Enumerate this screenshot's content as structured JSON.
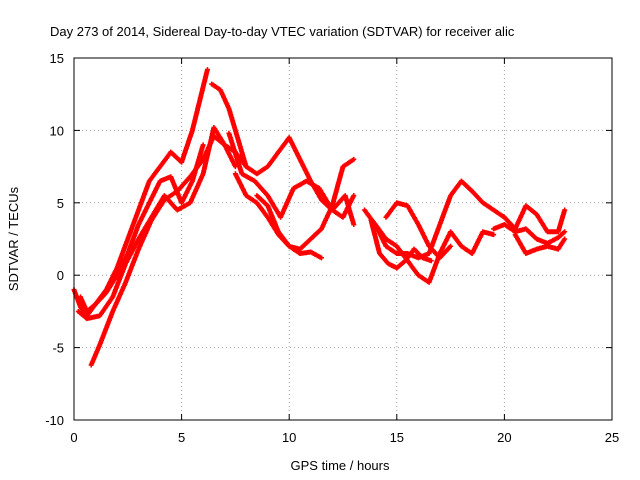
{
  "chart_data": {
    "type": "scatter",
    "title": "Day 273 of 2014, Sidereal Day-to-day VTEC variation (SDTVAR) for receiver alic",
    "xlabel": "GPS time / hours",
    "ylabel": "SDTVAR / TECUs",
    "xlim": [
      0,
      25
    ],
    "ylim": [
      -10,
      15
    ],
    "xticks": [
      0,
      5,
      10,
      15,
      20,
      25
    ],
    "yticks": [
      -10,
      -5,
      0,
      5,
      10,
      15
    ],
    "xtick_labels": [
      "0",
      "5",
      "10",
      "15",
      "20",
      "25"
    ],
    "ytick_labels": [
      "-10",
      "-5",
      "0",
      "5",
      "10",
      "15"
    ],
    "grid": true,
    "marker": "+",
    "color": "#ff0000",
    "series": [
      {
        "name": "trace-1",
        "x": [
          0.0,
          0.3,
          0.6,
          1.0,
          1.5,
          2.0,
          2.5,
          3.0,
          3.5,
          4.0,
          4.5,
          5.0,
          5.5,
          6.0,
          6.2
        ],
        "y": [
          -1.0,
          -2.2,
          -2.8,
          -2.0,
          -1.0,
          0.5,
          2.5,
          4.5,
          6.5,
          7.5,
          8.5,
          7.8,
          10.0,
          13.0,
          14.2
        ]
      },
      {
        "name": "trace-2",
        "x": [
          0.3,
          0.6,
          1.0,
          1.5,
          2.0,
          2.5,
          3.0,
          3.5,
          4.0,
          4.5,
          5.0,
          5.5,
          6.0
        ],
        "y": [
          -1.5,
          -2.5,
          -2.0,
          -1.2,
          0.0,
          1.5,
          3.5,
          5.0,
          6.5,
          6.8,
          5.0,
          6.5,
          9.0
        ]
      },
      {
        "name": "trace-3",
        "x": [
          0.8,
          1.2,
          1.8,
          2.4,
          3.0,
          3.6,
          4.2,
          4.8,
          5.4,
          6.0,
          6.5,
          7.0,
          7.5,
          8.0
        ],
        "y": [
          -6.2,
          -4.8,
          -2.5,
          -0.5,
          1.8,
          3.8,
          5.2,
          5.8,
          6.8,
          8.0,
          9.6,
          9.0,
          8.5,
          7.5
        ]
      },
      {
        "name": "trace-4",
        "x": [
          0.2,
          0.6,
          1.2,
          1.8,
          2.4,
          3.0,
          3.6,
          4.2,
          4.8,
          5.4,
          6.0,
          6.5,
          7.0,
          7.5
        ],
        "y": [
          -2.5,
          -3.0,
          -2.8,
          -1.5,
          0.8,
          2.5,
          4.0,
          5.5,
          4.5,
          5.0,
          7.0,
          10.2,
          9.0,
          7.5
        ]
      },
      {
        "name": "trace-5",
        "x": [
          6.4,
          6.8,
          7.2,
          7.6,
          8.0,
          8.5,
          9.0,
          9.5,
          10.0,
          10.5,
          11.0,
          11.5,
          12.0,
          12.5,
          13.0
        ],
        "y": [
          13.2,
          12.8,
          11.5,
          9.5,
          7.5,
          7.0,
          7.5,
          8.5,
          9.5,
          8.0,
          6.5,
          5.2,
          4.5,
          4.0,
          5.5
        ]
      },
      {
        "name": "trace-6",
        "x": [
          7.5,
          8.0,
          8.5,
          9.0,
          9.5,
          10.0,
          10.5,
          11.0,
          11.5,
          12.0,
          12.5,
          13.0
        ],
        "y": [
          7.0,
          5.5,
          5.0,
          4.0,
          2.8,
          2.0,
          1.8,
          2.5,
          3.2,
          4.8,
          7.5,
          8.0
        ]
      },
      {
        "name": "trace-7",
        "x": [
          7.2,
          7.8,
          8.4,
          9.0,
          9.6,
          10.2,
          10.8,
          11.4,
          12.0,
          12.6,
          13.0
        ],
        "y": [
          9.8,
          7.0,
          6.5,
          5.5,
          4.0,
          6.0,
          6.5,
          6.0,
          4.5,
          5.5,
          3.5
        ]
      },
      {
        "name": "trace-8",
        "x": [
          8.5,
          9.0,
          9.5,
          10.0,
          10.5,
          11.0,
          11.5
        ],
        "y": [
          5.5,
          4.8,
          3.0,
          2.0,
          1.5,
          1.6,
          1.2
        ]
      },
      {
        "name": "trace-9",
        "x": [
          13.5,
          14.0,
          14.5,
          15.0,
          15.5,
          16.0,
          16.5,
          17.0,
          17.5,
          18.0,
          18.5,
          19.0,
          19.5,
          20.0
        ],
        "y": [
          4.5,
          3.5,
          2.0,
          1.5,
          1.5,
          1.2,
          1.5,
          3.5,
          5.5,
          6.5,
          5.8,
          5.0,
          4.5,
          4.0
        ]
      },
      {
        "name": "trace-10",
        "x": [
          14.0,
          14.5,
          15.0,
          15.5,
          16.0,
          16.5,
          17.0,
          17.5,
          18.0,
          18.5,
          19.0,
          19.5
        ],
        "y": [
          3.5,
          2.5,
          2.0,
          1.0,
          0.0,
          -0.5,
          1.5,
          3.0,
          2.0,
          1.5,
          3.0,
          2.8
        ]
      },
      {
        "name": "trace-11",
        "x": [
          13.8,
          14.2,
          14.6,
          15.0,
          15.4,
          15.8,
          16.2,
          16.6
        ],
        "y": [
          3.8,
          1.5,
          0.8,
          0.5,
          1.0,
          1.8,
          1.2,
          1.0
        ]
      },
      {
        "name": "trace-12",
        "x": [
          14.5,
          15.0,
          15.5,
          16.0,
          16.5,
          17.0,
          17.5
        ],
        "y": [
          4.0,
          5.0,
          4.8,
          3.5,
          2.0,
          1.2,
          2.0
        ]
      },
      {
        "name": "trace-13",
        "x": [
          20.0,
          20.5,
          21.0,
          21.5,
          22.0,
          22.5,
          22.8
        ],
        "y": [
          4.0,
          3.2,
          4.8,
          4.2,
          3.0,
          3.0,
          4.5
        ]
      },
      {
        "name": "trace-14",
        "x": [
          19.5,
          20.0,
          20.5,
          21.0,
          21.5,
          22.0,
          22.5,
          22.8
        ],
        "y": [
          3.2,
          3.5,
          3.0,
          3.2,
          2.5,
          2.2,
          2.6,
          3.0
        ]
      },
      {
        "name": "trace-15",
        "x": [
          20.5,
          21.0,
          21.5,
          22.0,
          22.5,
          22.8
        ],
        "y": [
          2.8,
          1.5,
          1.8,
          2.0,
          1.8,
          2.5
        ]
      }
    ]
  }
}
